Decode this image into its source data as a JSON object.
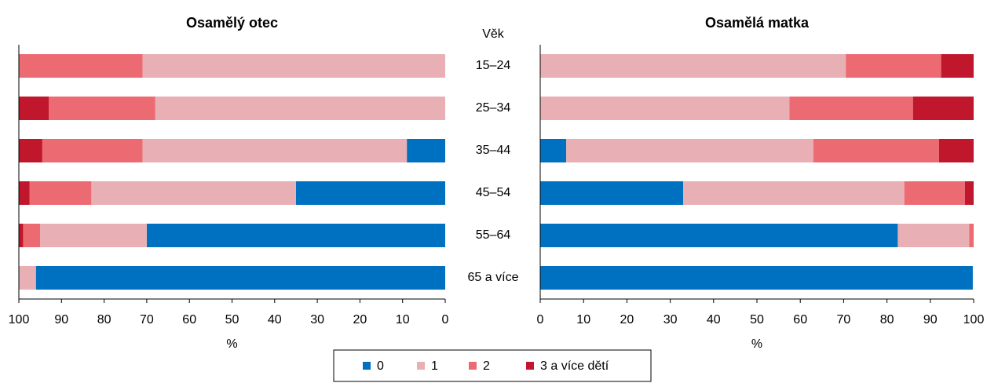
{
  "chart_data": [
    {
      "type": "bar",
      "orientation": "horizontal",
      "stacked": true,
      "title": "Osamělý otec",
      "category_label": "Věk",
      "categories": [
        "15–24",
        "25–34",
        "35–44",
        "45–54",
        "55–64",
        "65 a více"
      ],
      "series": [
        {
          "name": "0",
          "color": "#0070c0",
          "values": [
            0,
            0,
            9,
            35,
            70,
            96
          ]
        },
        {
          "name": "1",
          "color": "#e8b0b4",
          "values": [
            71,
            68,
            62,
            48,
            25,
            4
          ]
        },
        {
          "name": "2",
          "color": "#ec6b72",
          "values": [
            29,
            25,
            23.5,
            14.5,
            4,
            0
          ]
        },
        {
          "name": "3 a více dětí",
          "color": "#c0172c",
          "values": [
            0,
            7,
            5.5,
            2.5,
            1,
            0
          ]
        }
      ],
      "xlim": [
        0,
        100
      ],
      "invert_x": true,
      "xticks": [
        0,
        10,
        20,
        30,
        40,
        50,
        60,
        70,
        80,
        90,
        100
      ],
      "xlabel": "%"
    },
    {
      "type": "bar",
      "orientation": "horizontal",
      "stacked": true,
      "title": "Osamělá matka",
      "series": [
        {
          "color": "#0070c0",
          "values": [
            0,
            0,
            6,
            33,
            82.5,
            99.8
          ]
        },
        {
          "color": "#e8b0b4",
          "values": [
            70.5,
            57.5,
            57,
            51,
            16.5,
            0
          ]
        },
        {
          "color": "#ec6b72",
          "values": [
            22,
            28.5,
            29,
            14,
            1,
            0
          ]
        },
        {
          "color": "#c0172c",
          "values": [
            7.5,
            14,
            8,
            2,
            0,
            0
          ]
        }
      ],
      "xlim": [
        0,
        100
      ],
      "invert_x": false,
      "xticks": [
        0,
        10,
        20,
        30,
        40,
        50,
        60,
        70,
        80,
        90,
        100
      ],
      "xlabel": "%"
    }
  ]
}
